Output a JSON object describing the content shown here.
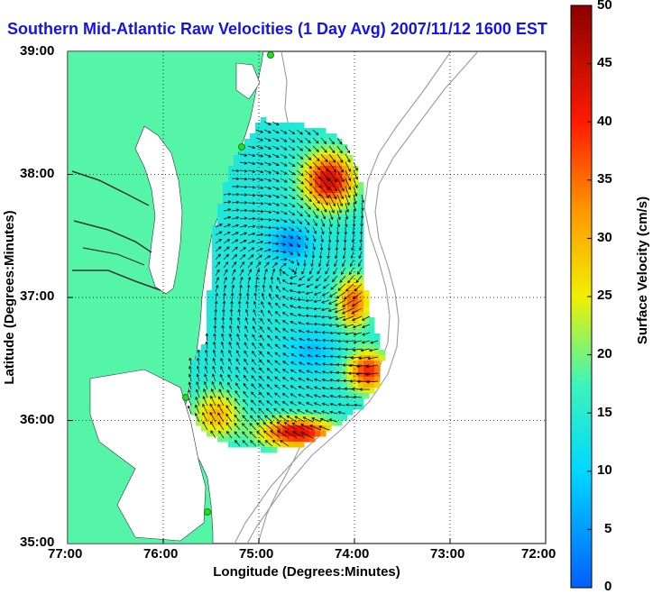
{
  "title": "Southern Mid-Atlantic Raw Velocities (1 Day Avg) 2007/11/12 1600 EST",
  "axes": {
    "xlabel": "Longitude (Degrees:Minutes)",
    "ylabel": "Latitude (Degrees:Minutes)",
    "xticks": [
      "77:00",
      "76:00",
      "75:00",
      "74:00",
      "73:00",
      "72:00"
    ],
    "yticks": [
      "39:00",
      "38:00",
      "37:00",
      "36:00",
      "35:00"
    ]
  },
  "colorbar": {
    "label": "Surface Velocity (cm/s)",
    "ticks": [
      "50",
      "45",
      "40",
      "35",
      "30",
      "25",
      "20",
      "15",
      "10",
      "5",
      "0"
    ],
    "range": [
      0,
      50
    ]
  },
  "colors": {
    "land": "#55f5a8",
    "water": "#ffffff",
    "title": "#1414e6",
    "arrows": "#000000",
    "bathymetry": "#9a9a9a"
  },
  "chart_data": {
    "type": "heatmap",
    "title": "Southern Mid-Atlantic Raw Velocities (1 Day Avg) 2007/11/12 1600 EST",
    "xlabel": "Longitude (Degrees:Minutes)",
    "ylabel": "Latitude (Degrees:Minutes)",
    "xlim": [
      -77,
      -72
    ],
    "ylim": [
      35,
      39
    ],
    "grid": true,
    "colorbar_label": "Surface Velocity (cm/s)",
    "clim": [
      0,
      50
    ]
  }
}
